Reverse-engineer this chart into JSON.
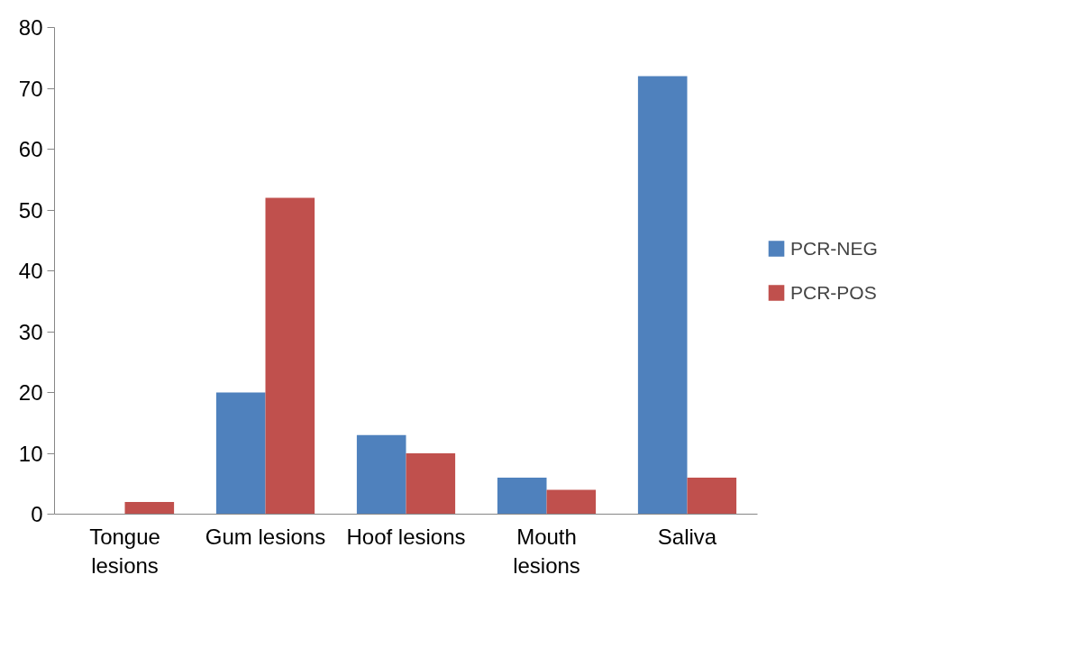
{
  "chart_data": {
    "type": "bar",
    "categories": [
      "Tongue\nlesions",
      "Gum lesions",
      "Hoof lesions",
      "Mouth\nlesions",
      "Saliva"
    ],
    "series": [
      {
        "name": "PCR-NEG",
        "color": "#4f81bd",
        "values": [
          0,
          20,
          13,
          6,
          72
        ]
      },
      {
        "name": "PCR-POS",
        "color": "#c0504d",
        "values": [
          2,
          52,
          10,
          4,
          6
        ]
      }
    ],
    "ylim": [
      0,
      80
    ],
    "yticks": [
      0,
      10,
      20,
      30,
      40,
      50,
      60,
      70,
      80
    ],
    "grid": false,
    "legend": "right"
  }
}
